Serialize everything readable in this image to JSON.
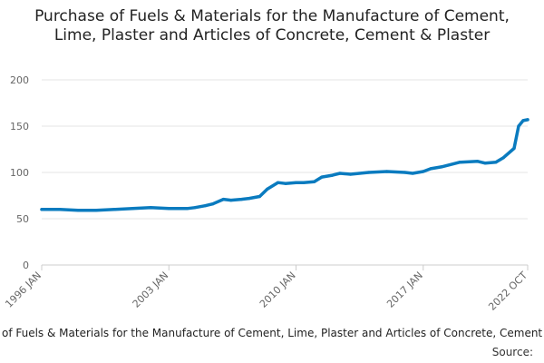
{
  "colors": {
    "series": "#0a7bbf",
    "grid": "#e6e6e6",
    "axis": "#cccccc",
    "text": "#222222",
    "tick_text": "#666666"
  },
  "caption": "Purchase of Fuels & Materials for the Manufacture of Cement, Lime, Plaster and Articles of Concrete, Cement & Plaster",
  "source_label": "Source:",
  "chart_data": {
    "type": "line",
    "title": "Purchase of Fuels & Materials for the Manufacture of Cement, Lime, Plaster and Articles of Concrete, Cement & Plaster",
    "xlabel": "",
    "ylabel": "",
    "ylim": [
      0,
      200
    ],
    "yticks": [
      0,
      50,
      100,
      150,
      200
    ],
    "xlim": [
      "1996-01",
      "2022-10"
    ],
    "xticks": [
      {
        "date": "1996-01",
        "label": "1996 JAN"
      },
      {
        "date": "2003-01",
        "label": "2003 JAN"
      },
      {
        "date": "2010-01",
        "label": "2010 JAN"
      },
      {
        "date": "2017-01",
        "label": "2017 JAN"
      },
      {
        "date": "2022-10",
        "label": "2022 OCT"
      }
    ],
    "grid": true,
    "legend": "none",
    "series": [
      {
        "x": [
          "1996-01",
          "1997-01",
          "1998-01",
          "1999-01",
          "2000-01",
          "2001-01",
          "2002-01",
          "2003-01",
          "2004-01",
          "2004-06",
          "2005-01",
          "2005-06",
          "2006-01",
          "2006-06",
          "2007-01",
          "2007-06",
          "2008-01",
          "2008-06",
          "2009-01",
          "2009-06",
          "2010-01",
          "2010-06",
          "2011-01",
          "2011-06",
          "2012-01",
          "2012-06",
          "2013-01",
          "2014-01",
          "2015-01",
          "2016-01",
          "2016-06",
          "2017-01",
          "2017-06",
          "2018-01",
          "2019-01",
          "2020-01",
          "2020-06",
          "2021-01",
          "2021-06",
          "2022-01",
          "2022-04",
          "2022-07",
          "2022-10"
        ],
        "values": [
          60,
          60,
          59,
          59,
          60,
          61,
          62,
          61,
          61,
          62,
          64,
          66,
          71,
          70,
          71,
          72,
          74,
          82,
          89,
          88,
          89,
          89,
          90,
          95,
          97,
          99,
          98,
          100,
          101,
          100,
          99,
          101,
          104,
          106,
          111,
          112,
          110,
          111,
          116,
          126,
          150,
          156,
          157
        ]
      }
    ]
  }
}
